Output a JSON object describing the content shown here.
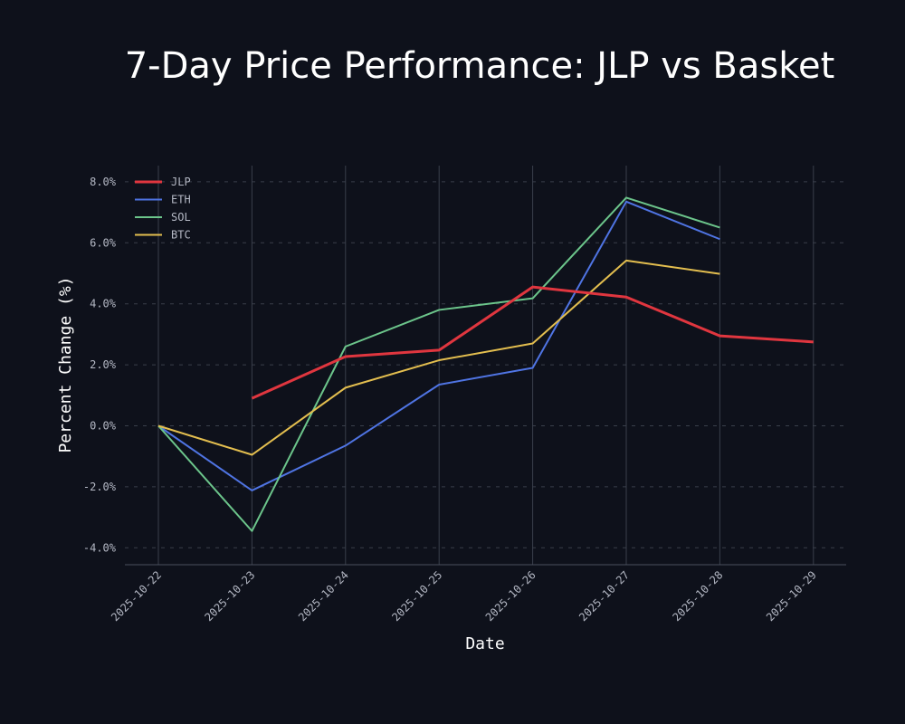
{
  "chart_data": {
    "type": "line",
    "title": "7-Day Price Performance: JLP vs Basket",
    "xlabel": "Date",
    "ylabel": "Percent Change (%)",
    "categories": [
      "2025-10-22",
      "2025-10-23",
      "2025-10-24",
      "2025-10-25",
      "2025-10-26",
      "2025-10-27",
      "2025-10-28",
      "2025-10-29"
    ],
    "ylim": [
      -4.6,
      8.5
    ],
    "yticks": [
      8.0,
      6.0,
      4.0,
      2.0,
      0.0,
      -2.0,
      -4.0
    ],
    "ytick_labels": [
      "8.0%",
      "6.0%",
      "4.0%",
      "2.0%",
      "0.0%",
      "-2.0%",
      "-4.0%"
    ],
    "grid": true,
    "legend_position": "top-left",
    "series": [
      {
        "name": "JLP",
        "color": "#e0363f",
        "values": [
          null,
          0.9,
          2.27,
          2.48,
          4.55,
          4.22,
          2.95,
          2.75
        ]
      },
      {
        "name": "ETH",
        "color": "#4f74e3",
        "values": [
          0.0,
          -2.12,
          -0.65,
          1.35,
          1.9,
          7.35,
          6.12,
          null
        ]
      },
      {
        "name": "SOL",
        "color": "#6cc58b",
        "values": [
          0.0,
          -3.45,
          2.6,
          3.8,
          4.18,
          7.48,
          6.5,
          null
        ]
      },
      {
        "name": "BTC",
        "color": "#e3be4f",
        "values": [
          0.0,
          -0.95,
          1.25,
          2.15,
          2.7,
          5.42,
          4.98,
          null
        ]
      }
    ]
  },
  "colors": {
    "background": "#0e111b",
    "grid": "#3a3f4b",
    "tick": "#b4b8c4",
    "text": "#ffffff"
  }
}
